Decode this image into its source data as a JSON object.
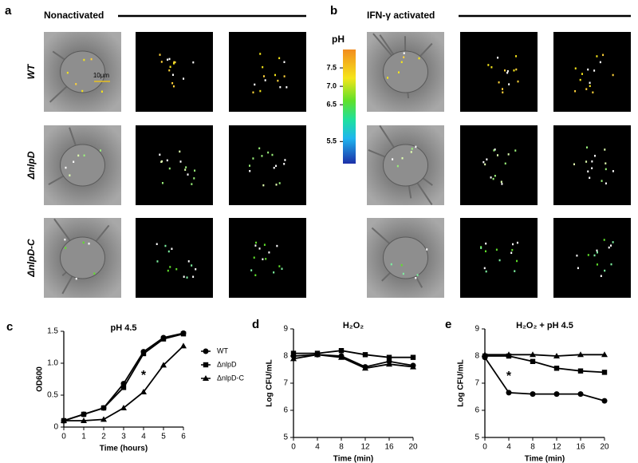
{
  "figure": {
    "panel_a": {
      "label": "a",
      "title": "Nonactivated"
    },
    "panel_b": {
      "label": "b",
      "title": "IFN-γ activated"
    },
    "rows": [
      "WT",
      "ΔnlpD",
      "ΔnlpD-C"
    ],
    "scale_bar": "10μm",
    "colorbar": {
      "title": "pH",
      "lim": [
        4.9,
        8.0
      ],
      "ticks": [
        7.5,
        {
          "value": 7,
          "label": "7.0"
        },
        6.5,
        5.5
      ]
    }
  },
  "chart_data": [
    {
      "type": "line",
      "label": "c",
      "title": "pH 4.5",
      "xlabel": "Time (hours)",
      "ylabel": "OD600",
      "x": [
        0,
        1,
        2,
        3,
        4,
        5,
        6
      ],
      "xlim": [
        0,
        6
      ],
      "xticks": [
        0,
        1,
        2,
        3,
        4,
        5,
        6
      ],
      "ylim": [
        0,
        1.5
      ],
      "yticks": [
        0,
        {
          "value": 0.5,
          "label": "0.5"
        },
        {
          "value": 1,
          "label": "1.0"
        },
        {
          "value": 1.5,
          "label": "1.5"
        }
      ],
      "legend": "right",
      "series": [
        {
          "name": "WT",
          "color": "#000000",
          "marker": "circle",
          "values": [
            0.1,
            0.2,
            0.3,
            0.68,
            1.18,
            1.4,
            1.47
          ]
        },
        {
          "name": "ΔnlpD",
          "color": "#000000",
          "marker": "square",
          "values": [
            0.1,
            0.2,
            0.3,
            0.62,
            1.15,
            1.38,
            1.46
          ]
        },
        {
          "name": "ΔnlpD-C",
          "color": "#000000",
          "marker": "triangle",
          "values": [
            0.1,
            0.1,
            0.12,
            0.3,
            0.55,
            0.97,
            1.27
          ]
        }
      ],
      "annotation": {
        "text": "*",
        "x": 4
      }
    },
    {
      "type": "line",
      "label": "d",
      "title": "H₂O₂",
      "xlabel": "Time (min)",
      "ylabel": "Log CFU/mL",
      "x": [
        0,
        4,
        8,
        12,
        16,
        20
      ],
      "xlim": [
        0,
        20
      ],
      "xticks": [
        0,
        4,
        8,
        12,
        16,
        20
      ],
      "ylim": [
        5,
        9
      ],
      "yticks": [
        5,
        6,
        7,
        8,
        9
      ],
      "series": [
        {
          "color": "#000000",
          "marker": "circle",
          "values": [
            8.0,
            8.05,
            8.0,
            7.6,
            7.8,
            7.65
          ]
        },
        {
          "color": "#000000",
          "marker": "square",
          "values": [
            8.1,
            8.1,
            8.2,
            8.05,
            7.95,
            7.95
          ]
        },
        {
          "color": "#000000",
          "marker": "triangle",
          "values": [
            7.9,
            8.05,
            7.95,
            7.55,
            7.7,
            7.6
          ]
        }
      ]
    },
    {
      "type": "line",
      "label": "e",
      "title": "H₂O₂ + pH 4.5",
      "xlabel": "Time (min)",
      "ylabel": "Log CFU/mL",
      "x": [
        0,
        4,
        8,
        12,
        16,
        20
      ],
      "xlim": [
        0,
        20
      ],
      "xticks": [
        0,
        4,
        8,
        12,
        16,
        20
      ],
      "ylim": [
        5,
        9
      ],
      "yticks": [
        5,
        6,
        7,
        8,
        9
      ],
      "series": [
        {
          "color": "#000000",
          "marker": "triangle",
          "values": [
            8.05,
            8.05,
            8.05,
            8.0,
            8.05,
            8.05
          ]
        },
        {
          "color": "#000000",
          "marker": "square",
          "values": [
            8.0,
            8.0,
            7.8,
            7.55,
            7.45,
            7.4
          ]
        },
        {
          "color": "#000000",
          "marker": "circle",
          "values": [
            7.95,
            6.65,
            6.6,
            6.6,
            6.6,
            6.35
          ]
        }
      ],
      "annotation": {
        "text": "*",
        "x": 4
      }
    }
  ]
}
